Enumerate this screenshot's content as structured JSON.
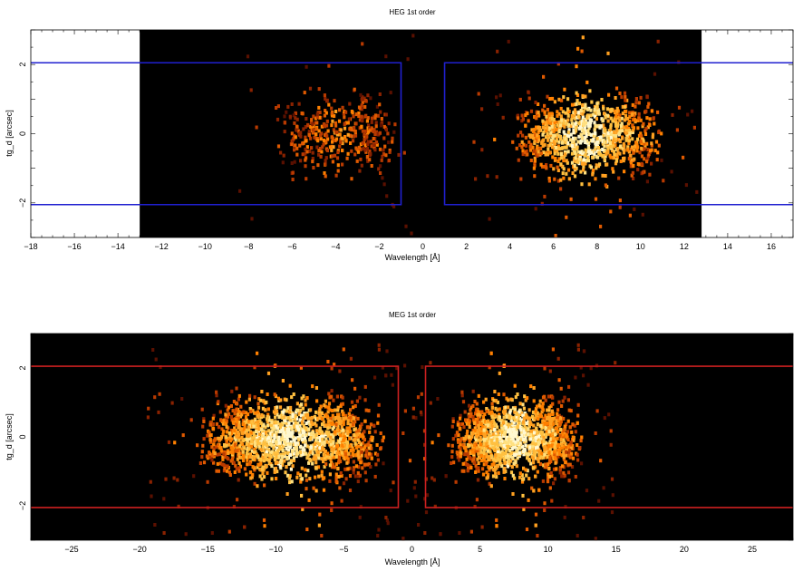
{
  "chart_data": [
    {
      "type": "heatmap",
      "title": "HEG 1st order",
      "xlabel": "Wavelength [Å]",
      "ylabel": "tg_d [arcsec]",
      "xlim": [
        -18,
        17
      ],
      "ylim": [
        -3,
        3
      ],
      "data_extent_x": [
        -13,
        12.8
      ],
      "x_ticks": [
        -18,
        -16,
        -14,
        -12,
        -10,
        -8,
        -6,
        -4,
        -2,
        0,
        2,
        4,
        6,
        8,
        10,
        12,
        14,
        16
      ],
      "x_tick_labels": [
        "−18",
        "−16",
        "−14",
        "−12",
        "−10",
        "−8",
        "−6",
        "−4",
        "−2",
        "0",
        "2",
        "4",
        "6",
        "8",
        "10",
        "12",
        "14",
        "16"
      ],
      "y_ticks": [
        -2,
        0,
        2
      ],
      "y_tick_labels": [
        "−2",
        "0",
        "2"
      ],
      "extraction_regions": [
        {
          "x": [
            -18,
            -1
          ],
          "y": [
            -2.05,
            2.05
          ]
        },
        {
          "x": [
            1,
            17
          ],
          "y": [
            -2.05,
            2.05
          ]
        }
      ],
      "region_color": "#2020d0",
      "clusters": [
        {
          "x_center": -4,
          "x_halfwidth": 3,
          "y_halfwidth": 1.5,
          "counts": 420,
          "peak": 0.5
        },
        {
          "x_center": 7.5,
          "x_halfwidth": 3.5,
          "y_halfwidth": 1.5,
          "counts": 1000,
          "peak": 1.0
        }
      ],
      "background": "#000000",
      "grid": false
    },
    {
      "type": "heatmap",
      "title": "MEG 1st order",
      "xlabel": "Wavelength [Å]",
      "ylabel": "tg_d [arcsec]",
      "xlim": [
        -28,
        28
      ],
      "ylim": [
        -3,
        3
      ],
      "data_extent_x": [
        -28,
        28
      ],
      "x_ticks": [
        -25,
        -20,
        -15,
        -10,
        -5,
        0,
        5,
        10,
        15,
        20,
        25
      ],
      "x_tick_labels": [
        "−25",
        "−20",
        "−15",
        "−10",
        "−5",
        "0",
        "5",
        "10",
        "15",
        "20",
        "25"
      ],
      "y_ticks": [
        -2,
        0,
        2
      ],
      "y_tick_labels": [
        "−2",
        "0",
        "2"
      ],
      "extraction_regions": [
        {
          "x": [
            -28,
            -1
          ],
          "y": [
            -2.05,
            2.05
          ]
        },
        {
          "x": [
            1,
            28
          ],
          "y": [
            -2.05,
            2.05
          ]
        }
      ],
      "region_color": "#cc2020",
      "clusters": [
        {
          "x_center": -9,
          "x_halfwidth": 7,
          "y_halfwidth": 1.6,
          "counts": 1700,
          "peak": 1.0
        },
        {
          "x_center": 7.5,
          "x_halfwidth": 5,
          "y_halfwidth": 1.6,
          "counts": 1500,
          "peak": 1.0
        }
      ],
      "background": "#000000",
      "grid": false
    }
  ]
}
